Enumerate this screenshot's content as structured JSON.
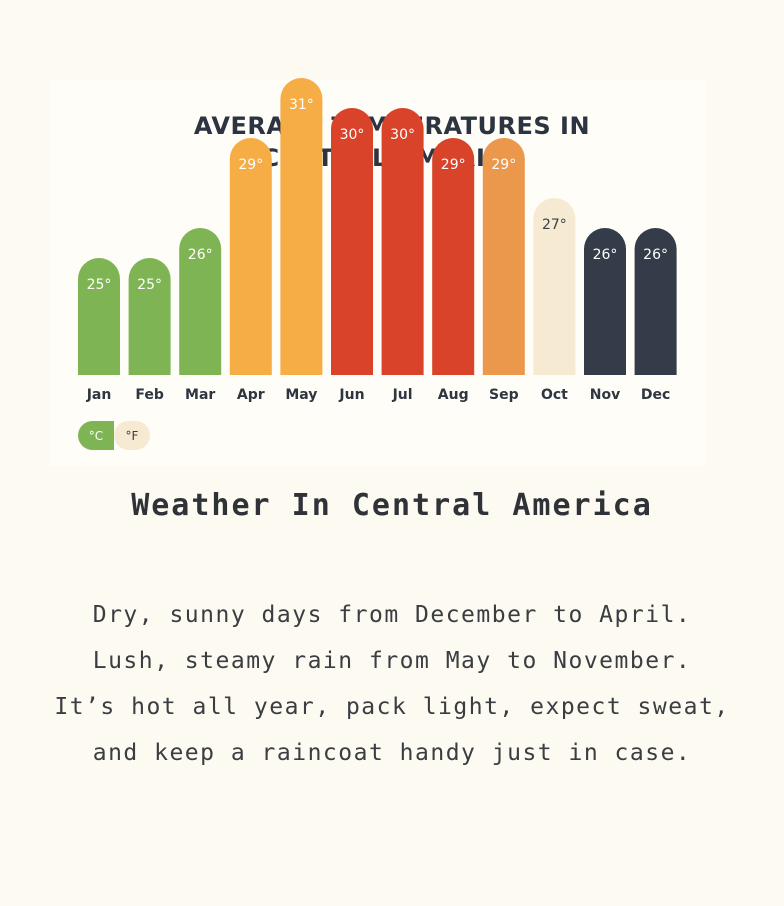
{
  "chart_data": {
    "type": "bar",
    "title": "AVERAGE TEMPERATURES IN\nCENTRAL AMERICA",
    "categories": [
      "Jan",
      "Feb",
      "Mar",
      "Apr",
      "May",
      "Jun",
      "Jul",
      "Aug",
      "Sep",
      "Oct",
      "Nov",
      "Dec"
    ],
    "values": [
      25,
      25,
      26,
      29,
      31,
      30,
      30,
      29,
      29,
      27,
      26,
      26
    ],
    "value_labels": [
      "25°",
      "25°",
      "26°",
      "29°",
      "31°",
      "30°",
      "30°",
      "29°",
      "29°",
      "27°",
      "26°",
      "26°"
    ],
    "bar_colors": [
      "#7fb455",
      "#7fb455",
      "#7fb455",
      "#f6ad45",
      "#f6ad45",
      "#d8432a",
      "#d8432a",
      "#d8432a",
      "#eb984c",
      "#f6ead2",
      "#333c48",
      "#333c48"
    ],
    "label_colors": [
      "#ffffff",
      "#ffffff",
      "#ffffff",
      "#ffffff",
      "#ffffff",
      "#ffffff",
      "#ffffff",
      "#ffffff",
      "#ffffff",
      "#3a3f46",
      "#ffffff",
      "#ffffff"
    ],
    "xlabel": "",
    "ylabel": "",
    "grid": false
  },
  "unit_toggle": {
    "celsius": "°C",
    "fahrenheit": "°F",
    "selected": "°C"
  },
  "heading": "Weather In Central America",
  "body": [
    "Dry, sunny days from December to April.",
    "Lush, steamy rain from May to November.",
    "It’s hot all year, pack light, expect sweat,",
    "and keep a raincoat handy just in case."
  ]
}
